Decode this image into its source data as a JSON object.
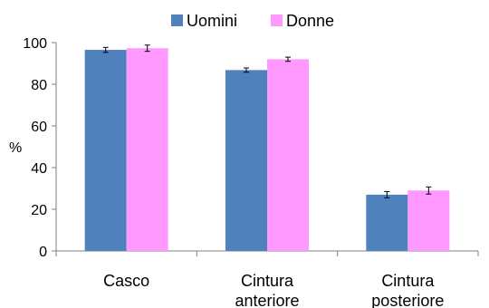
{
  "chart_data": {
    "type": "bar",
    "categories": [
      [
        "Casco"
      ],
      [
        "Cintura",
        "anteriore"
      ],
      [
        "Cintura",
        "posteriore"
      ]
    ],
    "series": [
      {
        "name": "Uomini",
        "color": "#4F81BD",
        "values": [
          96.5,
          86.8,
          27.0
        ],
        "errors": [
          1.2,
          1.0,
          1.5
        ]
      },
      {
        "name": "Donne",
        "color": "#FF99FF",
        "values": [
          97.3,
          92.0,
          29.0
        ],
        "errors": [
          1.5,
          1.0,
          1.7
        ]
      }
    ],
    "ylabel": "%",
    "ylim": [
      0,
      100
    ],
    "yticks": [
      0,
      20,
      40,
      60,
      80,
      100
    ],
    "grid": false,
    "legend": "top-center"
  }
}
